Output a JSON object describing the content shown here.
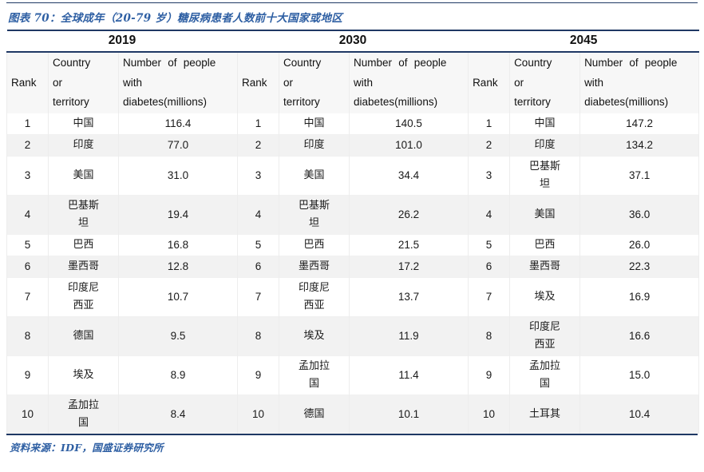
{
  "title": "图表 70：全球成年（20-79 岁）糖尿病患者人数前十大国家或地区",
  "source": "资料来源：IDF，国盛证券研究所",
  "colors": {
    "navy_rule": "#1F3864",
    "accent_blue": "#2E5FA3",
    "zebra_row": "#F2F2F2",
    "header_row_bg": "#F7F7F7"
  },
  "table": {
    "years": [
      "2019",
      "2030",
      "2045"
    ],
    "column_headers": {
      "rank": "Rank",
      "country": "Country\nor\nterritory",
      "number": "Number of people\nwith\ndiabetes(millions)"
    },
    "groups": [
      {
        "year": "2019",
        "rows": [
          {
            "rank": "1",
            "country": "中国",
            "value": "116.4"
          },
          {
            "rank": "2",
            "country": "印度",
            "value": "77.0"
          },
          {
            "rank": "3",
            "country": "美国",
            "value": "31.0"
          },
          {
            "rank": "4",
            "country": "巴基斯\n坦",
            "value": "19.4"
          },
          {
            "rank": "5",
            "country": "巴西",
            "value": "16.8"
          },
          {
            "rank": "6",
            "country": "墨西哥",
            "value": "12.8"
          },
          {
            "rank": "7",
            "country": "印度尼\n西亚",
            "value": "10.7"
          },
          {
            "rank": "8",
            "country": "德国",
            "value": "9.5"
          },
          {
            "rank": "9",
            "country": "埃及",
            "value": "8.9"
          },
          {
            "rank": "10",
            "country": "孟加拉\n国",
            "value": "8.4"
          }
        ]
      },
      {
        "year": "2030",
        "rows": [
          {
            "rank": "1",
            "country": "中国",
            "value": "140.5"
          },
          {
            "rank": "2",
            "country": "印度",
            "value": "101.0"
          },
          {
            "rank": "3",
            "country": "美国",
            "value": "34.4"
          },
          {
            "rank": "4",
            "country": "巴基斯\n坦",
            "value": "26.2"
          },
          {
            "rank": "5",
            "country": "巴西",
            "value": "21.5"
          },
          {
            "rank": "6",
            "country": "墨西哥",
            "value": "17.2"
          },
          {
            "rank": "7",
            "country": "印度尼\n西亚",
            "value": "13.7"
          },
          {
            "rank": "8",
            "country": "埃及",
            "value": "11.9"
          },
          {
            "rank": "9",
            "country": "孟加拉\n国",
            "value": "11.4"
          },
          {
            "rank": "10",
            "country": "德国",
            "value": "10.1"
          }
        ]
      },
      {
        "year": "2045",
        "rows": [
          {
            "rank": "1",
            "country": "中国",
            "value": "147.2"
          },
          {
            "rank": "2",
            "country": "印度",
            "value": "134.2"
          },
          {
            "rank": "3",
            "country": "巴基斯\n坦",
            "value": "37.1"
          },
          {
            "rank": "4",
            "country": "美国",
            "value": "36.0"
          },
          {
            "rank": "5",
            "country": "巴西",
            "value": "26.0"
          },
          {
            "rank": "6",
            "country": "墨西哥",
            "value": "22.3"
          },
          {
            "rank": "7",
            "country": "埃及",
            "value": "16.9"
          },
          {
            "rank": "8",
            "country": "印度尼\n西亚",
            "value": "16.6"
          },
          {
            "rank": "9",
            "country": "孟加拉\n国",
            "value": "15.0"
          },
          {
            "rank": "10",
            "country": "土耳其",
            "value": "10.4"
          }
        ]
      }
    ]
  }
}
